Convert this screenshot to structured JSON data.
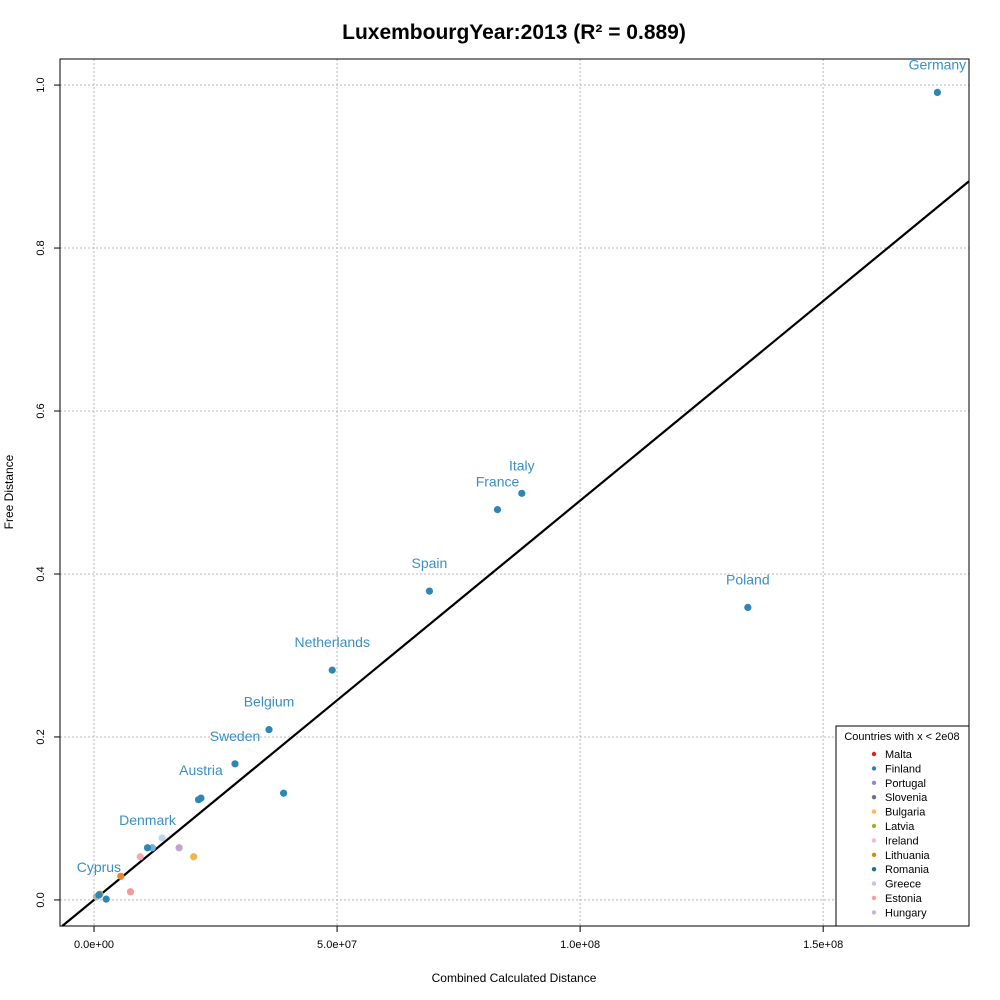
{
  "chart_data": {
    "type": "scatter",
    "title": "LuxembourgYear:2013 (R² = 0.889)",
    "xlabel": "Combined Calculated Distance",
    "ylabel": "Free Distance",
    "xlim": [
      -7000000,
      180000000
    ],
    "ylim": [
      -0.032,
      1.032
    ],
    "xticks": [
      0,
      50000000,
      100000000,
      150000000
    ],
    "xtick_labels": [
      "0.0e+00",
      "5.0e+07",
      "1.0e+08",
      "1.5e+08"
    ],
    "yticks": [
      0.0,
      0.2,
      0.4,
      0.6,
      0.8,
      1.0
    ],
    "ytick_labels": [
      "0.0",
      "0.2",
      "0.4",
      "0.6",
      "0.8",
      "1.0"
    ],
    "grid": true,
    "regression_line": {
      "slope": 4.9e-09,
      "intercept": 0.0
    },
    "labeled_points": [
      {
        "label": "Germany",
        "x": 173500000,
        "y": 0.991
      },
      {
        "label": "Italy",
        "x": 88000000,
        "y": 0.499
      },
      {
        "label": "France",
        "x": 83000000,
        "y": 0.479
      },
      {
        "label": "Spain",
        "x": 69000000,
        "y": 0.379
      },
      {
        "label": "Poland",
        "x": 134500000,
        "y": 0.359
      },
      {
        "label": "Netherlands",
        "x": 49000000,
        "y": 0.282
      },
      {
        "label": "Belgium",
        "x": 36000000,
        "y": 0.209
      },
      {
        "label": "Sweden",
        "x": 29000000,
        "y": 0.167
      },
      {
        "label": "Austria",
        "x": 22000000,
        "y": 0.125
      },
      {
        "label": "Denmark",
        "x": 11000000,
        "y": 0.064
      },
      {
        "label": "Cyprus",
        "x": 1000000,
        "y": 0.006
      }
    ],
    "unlabeled_points": [
      {
        "x": 21500000,
        "y": 0.123,
        "color": "#2e86b4"
      },
      {
        "x": 39000000,
        "y": 0.131,
        "color": "#2e86b4"
      },
      {
        "x": 2500000,
        "y": 0.001,
        "color": "#2e86b4"
      },
      {
        "x": 12000000,
        "y": 0.064,
        "color": "#7aaed6"
      },
      {
        "x": 14000000,
        "y": 0.076,
        "color": "#c3d3ea"
      },
      {
        "x": 17500000,
        "y": 0.064,
        "color": "#c1a3cf"
      },
      {
        "x": 20500000,
        "y": 0.053,
        "color": "#f4b342"
      },
      {
        "x": 9500000,
        "y": 0.053,
        "color": "#f6a8b8"
      },
      {
        "x": 5500000,
        "y": 0.029,
        "color": "#e8862a"
      },
      {
        "x": 7500000,
        "y": 0.01,
        "color": "#f49a9a"
      },
      {
        "x": 1200000,
        "y": 0.007,
        "color": "#a3a83c"
      },
      {
        "x": 500000,
        "y": 0.004,
        "color": "#b2b2b2"
      }
    ],
    "point_color": "#2e86b4",
    "label_color": "#3a8fc4",
    "legend": {
      "title": "Countries with x < 2e08",
      "position": "bottom-right",
      "entries": [
        {
          "name": "Malta",
          "color": "#e41a1c"
        },
        {
          "name": "Finland",
          "color": "#377eb8"
        },
        {
          "name": "Portugal",
          "color": "#8c8cd6"
        },
        {
          "name": "Slovenia",
          "color": "#7b6a7d"
        },
        {
          "name": "Bulgaria",
          "color": "#fdb462"
        },
        {
          "name": "Latvia",
          "color": "#a6a83a"
        },
        {
          "name": "Ireland",
          "color": "#f7b6d2"
        },
        {
          "name": "Lithuania",
          "color": "#e6820e"
        },
        {
          "name": "Romania",
          "color": "#1f6f8b"
        },
        {
          "name": "Greece",
          "color": "#b8c8e8"
        },
        {
          "name": "Estonia",
          "color": "#fb9a99"
        },
        {
          "name": "Hungary",
          "color": "#cab2d6"
        }
      ]
    }
  }
}
